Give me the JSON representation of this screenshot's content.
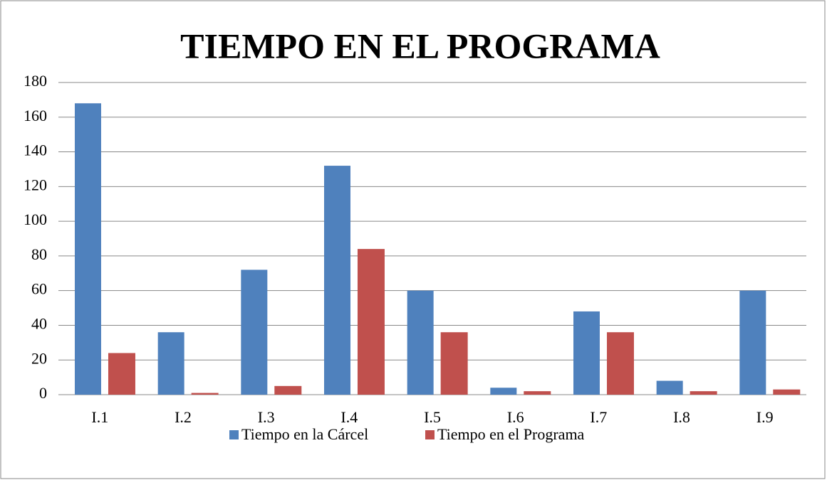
{
  "chart_data": {
    "type": "bar",
    "title": "TIEMPO EN EL PROGRAMA",
    "categories": [
      "I.1",
      "I.2",
      "I.3",
      "I.4",
      "I.5",
      "I.6",
      "I.7",
      "I.8",
      "I.9"
    ],
    "series": [
      {
        "name": "Tiempo en la Cárcel",
        "color": "#4f81bd",
        "values": [
          168,
          36,
          72,
          132,
          60,
          4,
          48,
          8,
          60
        ]
      },
      {
        "name": "Tiempo en el Programa",
        "color": "#c0504d",
        "values": [
          24,
          1,
          5,
          84,
          36,
          2,
          36,
          2,
          3
        ]
      }
    ],
    "ylim": [
      0,
      180
    ],
    "yticks": [
      0,
      20,
      40,
      60,
      80,
      100,
      120,
      140,
      160,
      180
    ],
    "grid": true,
    "legend": "bottom"
  }
}
